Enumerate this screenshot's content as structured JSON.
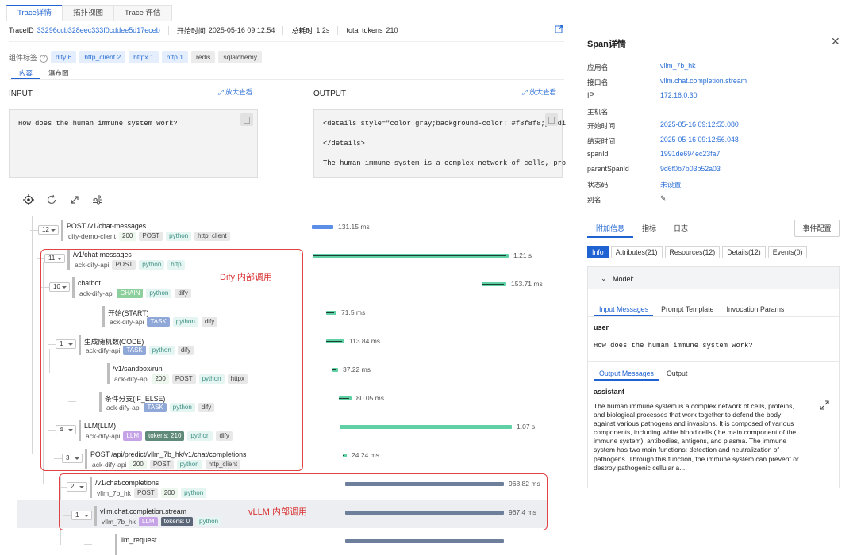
{
  "tabs": [
    "Trace详情",
    "拓扑视图",
    "Trace 评估"
  ],
  "meta": {
    "traceid_label": "TraceID",
    "traceid": "33296ccb328eec333f0cddee5d17eceb",
    "start_label": "开始时间",
    "start": "2025-05-16 09:12:54",
    "duration_label": "总耗时",
    "duration": "1.2s",
    "tokens_label": "total tokens",
    "tokens": "210"
  },
  "component_tags": {
    "label": "组件标签",
    "tags": [
      {
        "text": "dify 6",
        "style": "blue"
      },
      {
        "text": "http_client 2",
        "style": "blue"
      },
      {
        "text": "httpx 1",
        "style": "blue"
      },
      {
        "text": "http 1",
        "style": "blue"
      },
      {
        "text": "redis",
        "style": "gray"
      },
      {
        "text": "sqlalchemy",
        "style": "gray"
      }
    ]
  },
  "subtabs": [
    "内容",
    "瀑布图"
  ],
  "input": {
    "title": "INPUT",
    "zoom": "放大查看",
    "text": "How does the human immune system work?"
  },
  "output": {
    "title": "OUTPUT",
    "zoom": "放大查看",
    "lines": [
      "<details style=\"color:gray;background-color: #f8f8f8;paddi",
      "</details>",
      "The human immune system is a complex network of cells, pro"
    ]
  },
  "trace_nodes": [
    {
      "count": "12",
      "name": "POST /v1/chat-messages",
      "service": "dify-demo-client",
      "tags": [
        [
          "200",
          "p-num"
        ],
        [
          "POST",
          "p-gray"
        ],
        [
          "python",
          "p-teal"
        ],
        [
          "http_client",
          "p-gray"
        ]
      ],
      "duration": "131.15 ms",
      "bar_color": "#5b8ee6"
    },
    {
      "count": "11",
      "name": "/v1/chat-messages",
      "service": "ack-dify-api",
      "tags": [
        [
          "POST",
          "p-gray"
        ],
        [
          "python",
          "p-teal"
        ],
        [
          "http",
          "p-teal"
        ]
      ],
      "duration": "1.21 s",
      "bar_color": "#5fd1a5"
    },
    {
      "count": "10",
      "name": "chatbot",
      "service": "ack-dify-api",
      "tags": [
        [
          "CHAIN",
          "p-chain"
        ],
        [
          "python",
          "p-teal"
        ],
        [
          "dify",
          "p-gray"
        ]
      ],
      "duration": "153.71 ms",
      "bar_color": "#5fd1a5"
    },
    {
      "count": "",
      "name": "开始(START)",
      "service": "ack-dify-api",
      "tags": [
        [
          "TASK",
          "p-task"
        ],
        [
          "python",
          "p-teal"
        ],
        [
          "dify",
          "p-gray"
        ]
      ],
      "duration": "71.5 ms",
      "bar_color": "#5fd1a5"
    },
    {
      "count": "1",
      "name": "生成随机数(CODE)",
      "service": "ack-dify-api",
      "tags": [
        [
          "TASK",
          "p-task"
        ],
        [
          "python",
          "p-teal"
        ],
        [
          "dify",
          "p-gray"
        ]
      ],
      "duration": "113.84 ms",
      "bar_color": "#5fd1a5"
    },
    {
      "count": "",
      "name": "/v1/sandbox/run",
      "service": "ack-dify-api",
      "tags": [
        [
          "200",
          "p-num"
        ],
        [
          "POST",
          "p-gray"
        ],
        [
          "python",
          "p-teal"
        ],
        [
          "httpx",
          "p-gray"
        ]
      ],
      "duration": "37.22 ms",
      "bar_color": "#5fd1a5"
    },
    {
      "count": "",
      "name": "条件分支(IF_ELSE)",
      "service": "ack-dify-api",
      "tags": [
        [
          "TASK",
          "p-task"
        ],
        [
          "python",
          "p-teal"
        ],
        [
          "dify",
          "p-gray"
        ]
      ],
      "duration": "80.05 ms",
      "bar_color": "#5fd1a5"
    },
    {
      "count": "4",
      "name": "LLM(LLM)",
      "service": "ack-dify-api",
      "tags": [
        [
          "LLM",
          "p-llm"
        ],
        [
          "tokens: 210",
          "p-tokens"
        ],
        [
          "python",
          "p-teal"
        ],
        [
          "dify",
          "p-gray"
        ]
      ],
      "duration": "1.07 s",
      "bar_color": "#5fd1a5"
    },
    {
      "count": "3",
      "name": "POST /api/predict/vllm_7b_hk/v1/chat/completions",
      "service": "ack-dify-api",
      "tags": [
        [
          "200",
          "p-num"
        ],
        [
          "POST",
          "p-gray"
        ],
        [
          "python",
          "p-teal"
        ],
        [
          "http_client",
          "p-gray"
        ]
      ],
      "duration": "24.24 ms",
      "bar_color": "#5fd1a5"
    },
    {
      "count": "2",
      "name": "/v1/chat/completions",
      "service": "vllm_7b_hk",
      "tags": [
        [
          "POST",
          "p-gray"
        ],
        [
          "200",
          "p-num"
        ],
        [
          "python",
          "p-teal"
        ]
      ],
      "duration": "968.82 ms",
      "bar_color": "#6e7f9c"
    },
    {
      "count": "1",
      "name": "vllm.chat.completion.stream",
      "service": "vllm_7b_hk",
      "tags": [
        [
          "LLM",
          "p-llm"
        ],
        [
          "tokens: 0",
          "p-tokens-dark"
        ],
        [
          "python",
          "p-teal"
        ]
      ],
      "duration": "967.4 ms",
      "bar_color": "#6e7f9c"
    },
    {
      "count": "",
      "name": "llm_request",
      "service": "",
      "tags": [],
      "duration": "",
      "bar_color": "#6e7f9c"
    }
  ],
  "annotations": {
    "dify": "Dify 内部调用",
    "vllm": "vLLM 内部调用"
  },
  "span_panel": {
    "title": "Span详情",
    "fields": [
      {
        "k": "应用名",
        "v": "vllm_7b_hk"
      },
      {
        "k": "接口名",
        "v": "vllm.chat.completion.stream"
      },
      {
        "k": "IP",
        "v": "172.16.0.30"
      },
      {
        "k": "主机名",
        "v": ""
      },
      {
        "k": "开始时间",
        "v": "2025-05-16 09:12:55.080"
      },
      {
        "k": "结束时间",
        "v": "2025-05-16 09:12:56.048"
      },
      {
        "k": "spanId",
        "v": "1991de694ec23fa7"
      },
      {
        "k": "parentSpanId",
        "v": "9d6f0b7b03b52a03"
      },
      {
        "k": "状态码",
        "v": "未设置"
      },
      {
        "k": "别名",
        "v": "✎"
      }
    ],
    "tabs": [
      "附加信息",
      "指标",
      "日志"
    ],
    "event_button": "事件配置",
    "buttons": [
      "Info",
      "Attributes(21)",
      "Resources(12)",
      "Details(12)",
      "Events(0)"
    ],
    "model_label": "Model:",
    "input_tabs": [
      "Input Messages",
      "Prompt Template",
      "Invocation Params"
    ],
    "input_role": "user",
    "input_text": "How does the human immune system work?",
    "output_tabs": [
      "Output Messages",
      "Output"
    ],
    "output_role": "assistant",
    "output_lines": [
      "The human immune system is a complex network of cells, proteins,",
      "and biological processes that work together to defend the body",
      "against various pathogens and invasions. It is composed of various",
      "components, including white blood cells (the main component of the",
      "immune system), antibodies, antigens, and plasma. The immune",
      "system has two main functions: detection and neutralization of",
      "pathogens. Through this function, the immune system can prevent or",
      "destroy pathogenic cellular a..."
    ]
  }
}
